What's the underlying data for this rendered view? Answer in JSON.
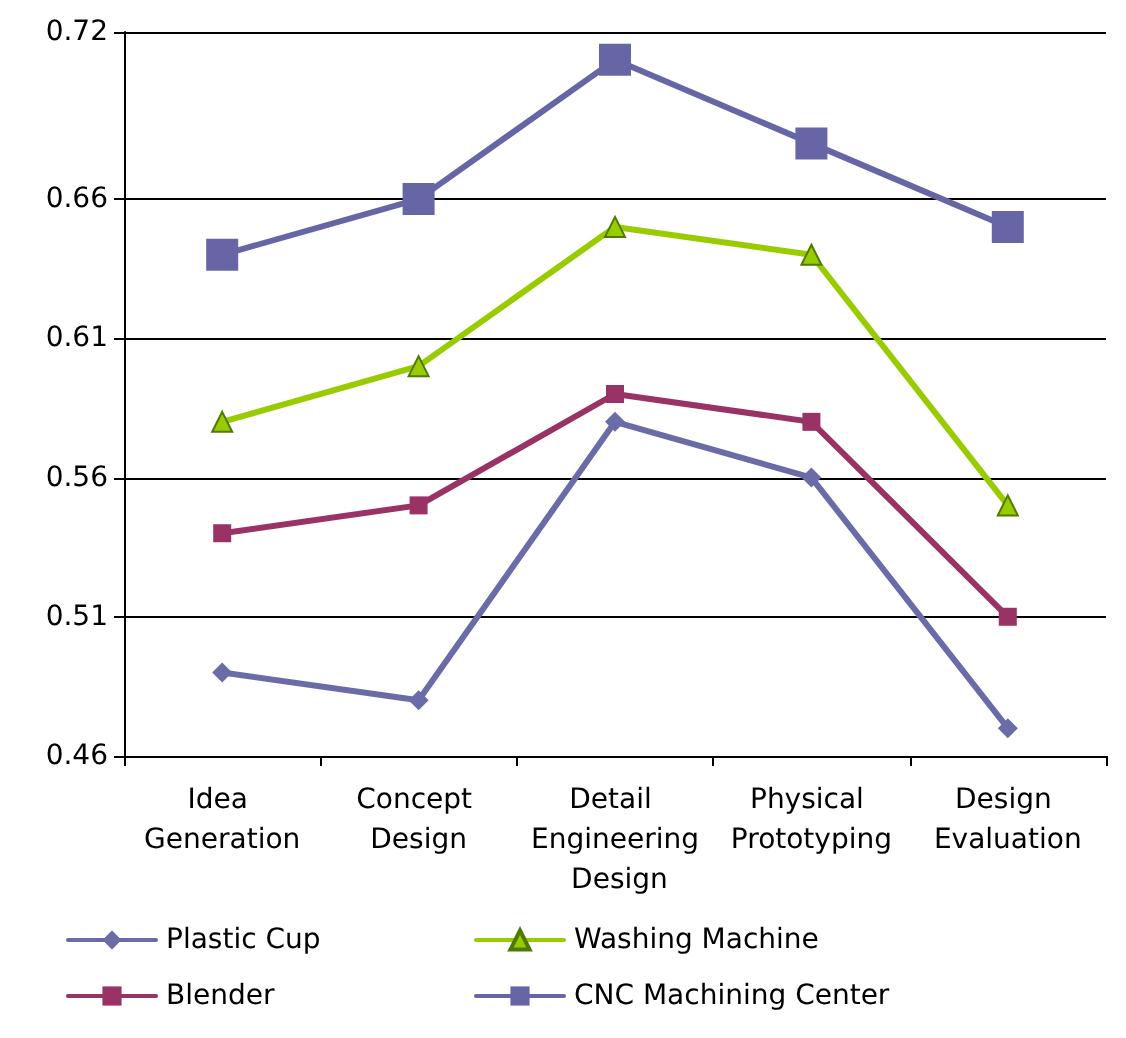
{
  "chart_data": {
    "type": "line",
    "categories": [
      "Idea Generation",
      "Concept Design",
      "Detail Engineering Design",
      "Physical Prototyping",
      "Design Evaluation"
    ],
    "series": [
      {
        "name": "Plastic Cup",
        "color": "#6b6ba8",
        "marker": "diamond",
        "values": [
          0.49,
          0.48,
          0.58,
          0.56,
          0.47
        ]
      },
      {
        "name": "Blender",
        "color": "#993366",
        "marker": "square",
        "values": [
          0.54,
          0.55,
          0.59,
          0.58,
          0.51
        ]
      },
      {
        "name": "Washing Machine",
        "color": "#99cc00",
        "marker": "triangle",
        "values": [
          0.58,
          0.6,
          0.65,
          0.64,
          0.55
        ]
      },
      {
        "name": "CNC Machining Center",
        "color": "#6666a6",
        "marker": "square",
        "values": [
          0.64,
          0.66,
          0.71,
          0.68,
          0.65
        ]
      }
    ],
    "ylim": [
      0.46,
      0.72
    ],
    "yticks": [
      0.46,
      0.51,
      0.56,
      0.61,
      0.66,
      0.72
    ],
    "grid": "y",
    "legend": "bottom",
    "line_style": "solid"
  }
}
